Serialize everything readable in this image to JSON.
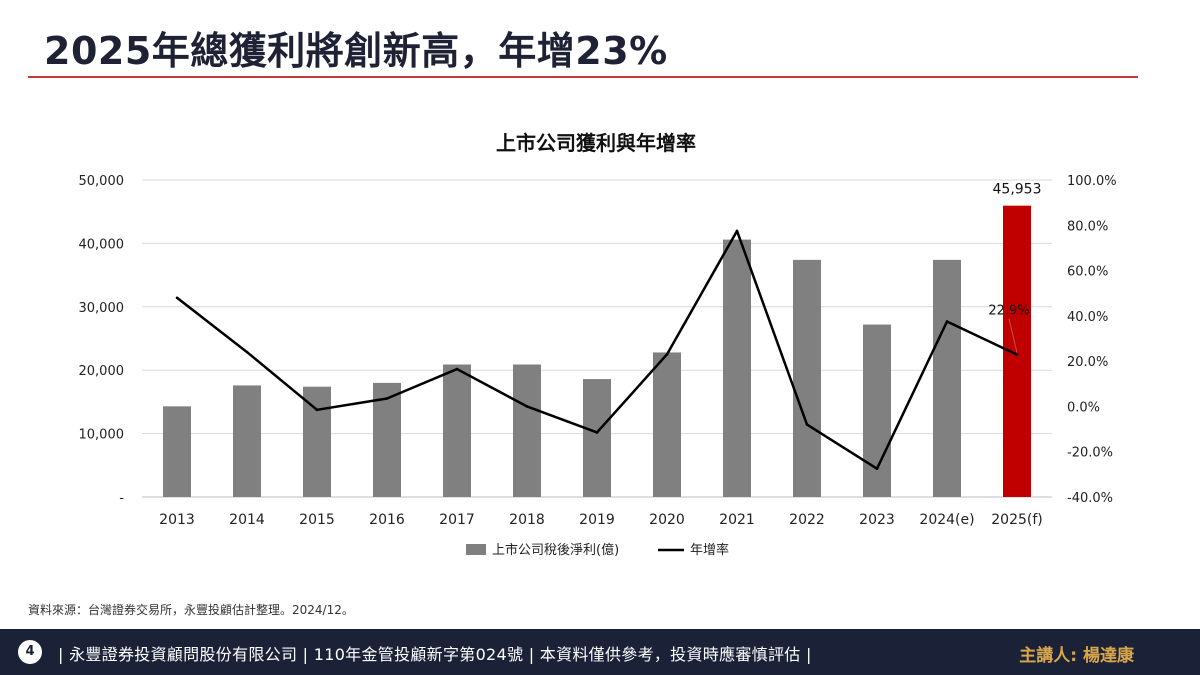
{
  "slide": {
    "title": "2025年總獲利將創新高，年增23%",
    "source": "資料來源：台灣證券交易所，永豐投顧估計整理。2024/12。"
  },
  "footer": {
    "page_number": "4",
    "disclaimer": "| 永豐證券投資顧問股份有限公司 | 110年金管投顧新字第024號 | 本資料僅供參考，投資時應審慎評估 |",
    "presenter": "主講人: 楊達康"
  },
  "colors": {
    "accent_rule": "#c4373d",
    "bar": "#808080",
    "bar_highlight": "#c00000",
    "line": "#000000",
    "footer_bg": "#1b2238",
    "presenter": "#d9a64a"
  },
  "chart_data": {
    "type": "bar",
    "title": "上市公司獲利與年增率",
    "categories": [
      "2013",
      "2014",
      "2015",
      "2016",
      "2017",
      "2018",
      "2019",
      "2020",
      "2021",
      "2022",
      "2023",
      "2024(e)",
      "2025(f)"
    ],
    "series": [
      {
        "name": "上市公司稅後淨利(億)",
        "type": "bar",
        "axis": "left",
        "values": [
          14300,
          17600,
          17400,
          18000,
          20900,
          20900,
          18600,
          22800,
          40600,
          37400,
          27200,
          37400,
          45953
        ],
        "highlight_index": 12
      },
      {
        "name": "年增率",
        "type": "line",
        "axis": "right",
        "values": [
          48.0,
          24.0,
          -1.5,
          3.5,
          16.5,
          0.0,
          -11.5,
          23.0,
          77.5,
          -8.0,
          -27.5,
          37.5,
          22.9
        ]
      }
    ],
    "left_axis": {
      "ylim": [
        0,
        50000
      ],
      "ticks": [
        "-",
        "10,000",
        "20,000",
        "30,000",
        "40,000",
        "50,000"
      ]
    },
    "right_axis": {
      "ylim": [
        -40,
        100
      ],
      "ticks": [
        "-40.0%",
        "-20.0%",
        "0.0%",
        "20.0%",
        "40.0%",
        "60.0%",
        "80.0%",
        "100.0%"
      ]
    },
    "data_labels": [
      {
        "series": 0,
        "index": 12,
        "text": "45,953"
      },
      {
        "series": 1,
        "index": 12,
        "text": "22.9%"
      }
    ],
    "grid": true,
    "legend": "bottom"
  }
}
